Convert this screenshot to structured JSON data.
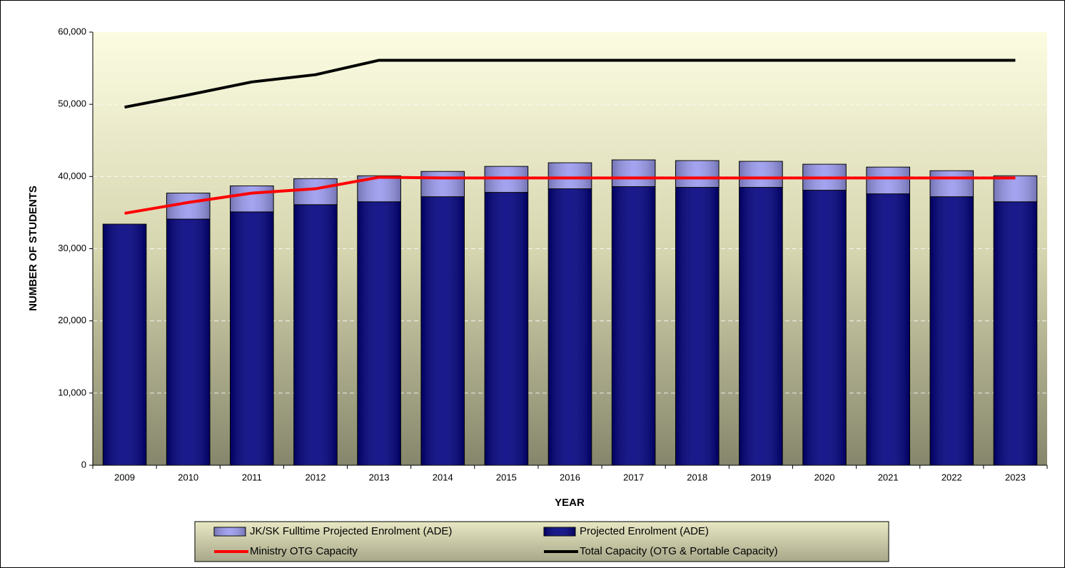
{
  "chart_data": {
    "type": "bar",
    "x_label": "YEAR",
    "y_label": "NUMBER OF STUDENTS",
    "categories": [
      "2009",
      "2010",
      "2011",
      "2012",
      "2013",
      "2014",
      "2015",
      "2016",
      "2017",
      "2018",
      "2019",
      "2020",
      "2021",
      "2022",
      "2023"
    ],
    "series": [
      {
        "name": "JK/SK Fulltime Projected Enrolment (ADE)",
        "type": "bar",
        "color": "#9999ee",
        "values": [
          0,
          3600,
          3600,
          3600,
          3600,
          3500,
          3600,
          3600,
          3700,
          3700,
          3600,
          3600,
          3700,
          3600,
          3600
        ]
      },
      {
        "name": "Projected Enrolment (ADE)",
        "type": "bar",
        "color": "#000080",
        "values": [
          33400,
          34100,
          35100,
          36100,
          36500,
          37200,
          37800,
          38300,
          38600,
          38500,
          38500,
          38100,
          37600,
          37200,
          36500
        ]
      },
      {
        "name": "Ministry OTG Capacity",
        "type": "line",
        "color": "#ff0000",
        "values": [
          34900,
          36400,
          37700,
          38300,
          39900,
          39800,
          39800,
          39800,
          39800,
          39800,
          39800,
          39800,
          39800,
          39800,
          39800
        ]
      },
      {
        "name": "Total Capacity (OTG & Portable Capacity)",
        "type": "line",
        "color": "#000000",
        "values": [
          49600,
          51300,
          53100,
          54100,
          56100,
          56100,
          56100,
          56100,
          56100,
          56100,
          56100,
          56100,
          56100,
          56100,
          56100
        ]
      }
    ],
    "ylim": [
      0,
      60000
    ],
    "yticks": [
      0,
      {
        "value": 10000,
        "label": "10,000"
      },
      {
        "value": 20000,
        "label": "20,000"
      },
      {
        "value": 30000,
        "label": "30,000"
      },
      {
        "value": 40000,
        "label": "40,000"
      },
      {
        "value": 50000,
        "label": "50,000"
      },
      {
        "value": 60000,
        "label": "60,000"
      }
    ],
    "grid": true,
    "stacked": true,
    "legend": "bottom"
  }
}
